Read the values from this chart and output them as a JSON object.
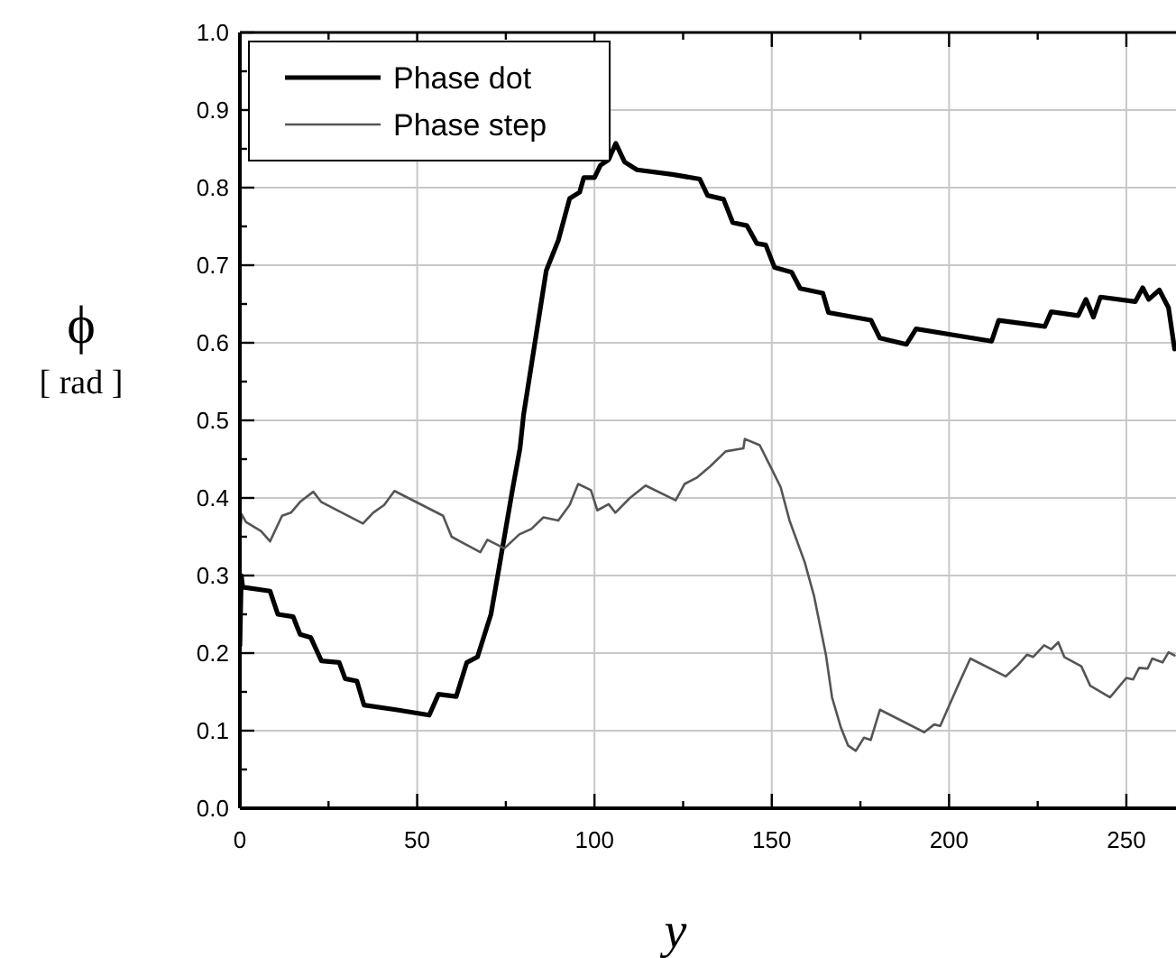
{
  "chart_data": {
    "type": "line",
    "xlabel": "y",
    "ylabel": "ϕ [ rad ]",
    "xlim": [
      0,
      264
    ],
    "ylim": [
      0,
      1
    ],
    "xticks": [
      0,
      {
        "value": 25,
        "label": null
      },
      50,
      {
        "value": 75,
        "label": null
      },
      100,
      {
        "value": 125,
        "label": null
      },
      150,
      {
        "value": 175,
        "label": null
      },
      200,
      {
        "value": 225,
        "label": null
      },
      250
    ],
    "yticks": [
      {
        "value": 0,
        "label": "0.0"
      },
      {
        "value": 0.05,
        "label": null
      },
      {
        "value": 0.1,
        "label": "0.1"
      },
      {
        "value": 0.15,
        "label": null
      },
      {
        "value": 0.2,
        "label": "0.2"
      },
      {
        "value": 0.25,
        "label": null
      },
      {
        "value": 0.3,
        "label": "0.3"
      },
      {
        "value": 0.35,
        "label": null
      },
      {
        "value": 0.4,
        "label": "0.4"
      },
      {
        "value": 0.45,
        "label": null
      },
      {
        "value": 0.5,
        "label": "0.5"
      },
      {
        "value": 0.55,
        "label": null
      },
      {
        "value": 0.6,
        "label": "0.6"
      },
      {
        "value": 0.65,
        "label": null
      },
      {
        "value": 0.7,
        "label": "0.7"
      },
      {
        "value": 0.75,
        "label": null
      },
      {
        "value": 0.8,
        "label": "0.8"
      },
      {
        "value": 0.85,
        "label": null
      },
      {
        "value": 0.9,
        "label": "0.9"
      },
      {
        "value": 0.95,
        "label": null
      },
      {
        "value": 1,
        "label": "1.0"
      }
    ],
    "grid": true,
    "legend": "top left",
    "marker": "none",
    "series": [
      {
        "name": "Phase dot",
        "color": "#000000",
        "x": [
          0,
          0.4,
          0.8,
          8.5,
          10.7,
          15,
          17,
          20,
          23,
          28,
          29.7,
          33,
          35,
          44,
          53.4,
          56,
          61,
          64,
          67,
          70.8,
          72.9,
          77,
          79,
          80,
          86.4,
          89.8,
          93,
          95.8,
          97,
          100,
          101.7,
          104,
          106,
          108.5,
          112,
          122,
          129.7,
          131.9,
          136.4,
          139,
          143,
          145.8,
          148.3,
          150.8,
          155.6,
          158,
          164.4,
          166,
          178,
          180.5,
          188,
          190.7,
          212,
          214,
          227,
          228.8,
          236.4,
          238.6,
          240.7,
          242.7,
          252.5,
          254.6,
          256.3,
          259.3,
          261.9,
          263.6
        ],
        "values": [
          0.21,
          0.3,
          0.285,
          0.28,
          0.25,
          0.247,
          0.224,
          0.22,
          0.19,
          0.188,
          0.167,
          0.164,
          0.133,
          0.127,
          0.12,
          0.147,
          0.144,
          0.188,
          0.195,
          0.25,
          0.305,
          0.414,
          0.464,
          0.507,
          0.693,
          0.732,
          0.786,
          0.794,
          0.813,
          0.813,
          0.829,
          0.836,
          0.857,
          0.833,
          0.823,
          0.817,
          0.811,
          0.79,
          0.785,
          0.755,
          0.751,
          0.728,
          0.726,
          0.697,
          0.691,
          0.67,
          0.664,
          0.639,
          0.629,
          0.606,
          0.598,
          0.618,
          0.602,
          0.629,
          0.621,
          0.64,
          0.635,
          0.656,
          0.633,
          0.659,
          0.653,
          0.671,
          0.656,
          0.668,
          0.645,
          0.592
        ]
      },
      {
        "name": "Phase step",
        "color": "#555555",
        "x": [
          0,
          0.5,
          1.7,
          6,
          8.5,
          11.9,
          14.4,
          17,
          20.7,
          22.9,
          34.7,
          37.6,
          40.7,
          43.6,
          57.3,
          59.7,
          67.8,
          69.8,
          74.6,
          78.8,
          82.2,
          85.6,
          89.8,
          93,
          95.4,
          99,
          100.8,
          104,
          105.9,
          110,
          114.4,
          122.9,
          125.4,
          128.8,
          132.7,
          137,
          142,
          142.4,
          146.6,
          150,
          152.5,
          155,
          159.3,
          161.9,
          165.3,
          167,
          169.5,
          171.5,
          173.7,
          176,
          177.9,
          180.5,
          193,
          195.8,
          197.5,
          202.5,
          206,
          216,
          219.5,
          222,
          223.7,
          226.8,
          228.8,
          230.8,
          232.5,
          237.3,
          239.8,
          245.4,
          250,
          251.9,
          253.6,
          256,
          257.3,
          260.2,
          261.9,
          263.6
        ],
        "values": [
          0.352,
          0.379,
          0.369,
          0.357,
          0.344,
          0.377,
          0.381,
          0.395,
          0.408,
          0.395,
          0.367,
          0.381,
          0.391,
          0.409,
          0.377,
          0.35,
          0.33,
          0.346,
          0.335,
          0.353,
          0.36,
          0.375,
          0.371,
          0.391,
          0.418,
          0.41,
          0.384,
          0.392,
          0.381,
          0.4,
          0.416,
          0.397,
          0.418,
          0.426,
          0.441,
          0.46,
          0.464,
          0.476,
          0.468,
          0.437,
          0.414,
          0.371,
          0.317,
          0.274,
          0.197,
          0.143,
          0.104,
          0.081,
          0.074,
          0.091,
          0.088,
          0.127,
          0.098,
          0.108,
          0.106,
          0.158,
          0.193,
          0.17,
          0.185,
          0.198,
          0.195,
          0.21,
          0.205,
          0.214,
          0.195,
          0.183,
          0.158,
          0.143,
          0.168,
          0.166,
          0.181,
          0.18,
          0.193,
          0.188,
          0.201,
          0.197
        ]
      }
    ]
  }
}
